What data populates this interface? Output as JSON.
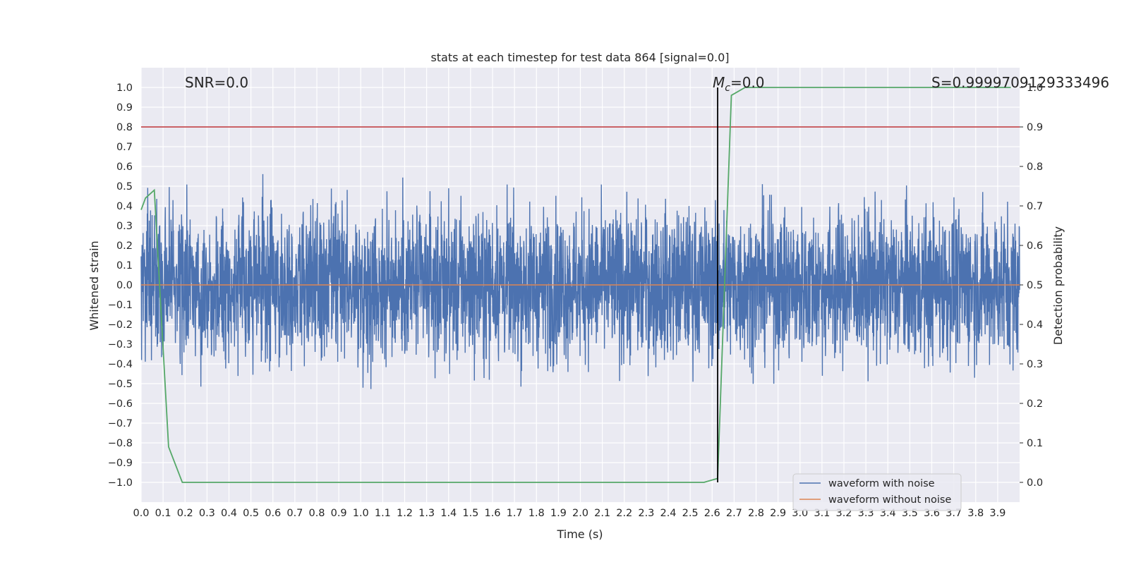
{
  "chart_data": {
    "type": "line",
    "title": "stats at each timestep for test data 864 [signal=0.0]",
    "xlabel": "Time (s)",
    "ylabel_left": "Whitened strain",
    "ylabel_right": "Detection probability",
    "xlim": [
      0.0,
      4.0
    ],
    "ylim_left": [
      -1.1,
      1.1
    ],
    "ylim_right": [
      -0.05,
      1.05
    ],
    "x_ticks": [
      0.0,
      0.1,
      0.2,
      0.3,
      0.4,
      0.5,
      0.6,
      0.7,
      0.8,
      0.9,
      1.0,
      1.1,
      1.2,
      1.3,
      1.4,
      1.5,
      1.6,
      1.7,
      1.8,
      1.9,
      2.0,
      2.1,
      2.2,
      2.3,
      2.4,
      2.5,
      2.6,
      2.7,
      2.8,
      2.9,
      3.0,
      3.1,
      3.2,
      3.3,
      3.4,
      3.5,
      3.6,
      3.7,
      3.8,
      3.9
    ],
    "y_ticks_left": [
      1.0,
      0.9,
      0.8,
      0.7,
      0.6,
      0.5,
      0.4,
      0.3,
      0.2,
      0.1,
      0.0,
      -0.1,
      -0.2,
      -0.3,
      -0.4,
      -0.5,
      -0.6,
      -0.7,
      -0.8,
      -0.9,
      -1.0
    ],
    "y_ticks_right": [
      1.0,
      0.9,
      0.8,
      0.7,
      0.6,
      0.5,
      0.4,
      0.3,
      0.2,
      0.1,
      0.0
    ],
    "grid": true,
    "legend_position": "lower-right",
    "annotations": {
      "snr": "SNR=0.0",
      "mc_symbol": "M",
      "mc_subscript": "c",
      "mc_value": "=0.0",
      "s": "S=0.9999709129333496"
    },
    "series": [
      {
        "name": "waveform with noise",
        "axis": "left",
        "color": "#4c72b0",
        "sample_count": 4000,
        "amplitude_typical": 0.3,
        "max": 0.83,
        "min": -0.97
      },
      {
        "name": "waveform without noise",
        "axis": "left",
        "color": "#dd8452",
        "x": [
          0.0,
          4.0
        ],
        "y": [
          0.0,
          0.0
        ]
      },
      {
        "name": "detection probability",
        "axis": "right",
        "color": "#55a868",
        "x": [
          0.0,
          0.02,
          0.04,
          0.06,
          0.125,
          0.1875,
          2.5625,
          2.625,
          2.6875,
          2.75,
          2.8125,
          3.96
        ],
        "y": [
          0.69,
          0.72,
          0.73,
          0.74,
          0.09,
          0.0,
          0.0,
          0.01,
          0.98,
          1.0,
          1.0,
          1.0
        ]
      }
    ],
    "threshold_line": {
      "axis": "right",
      "y": 0.9,
      "color": "#c44e52"
    },
    "marker_line": {
      "x": 2.625,
      "axis": "right",
      "y_range": [
        0.0,
        1.0
      ],
      "color": "#000000"
    }
  }
}
